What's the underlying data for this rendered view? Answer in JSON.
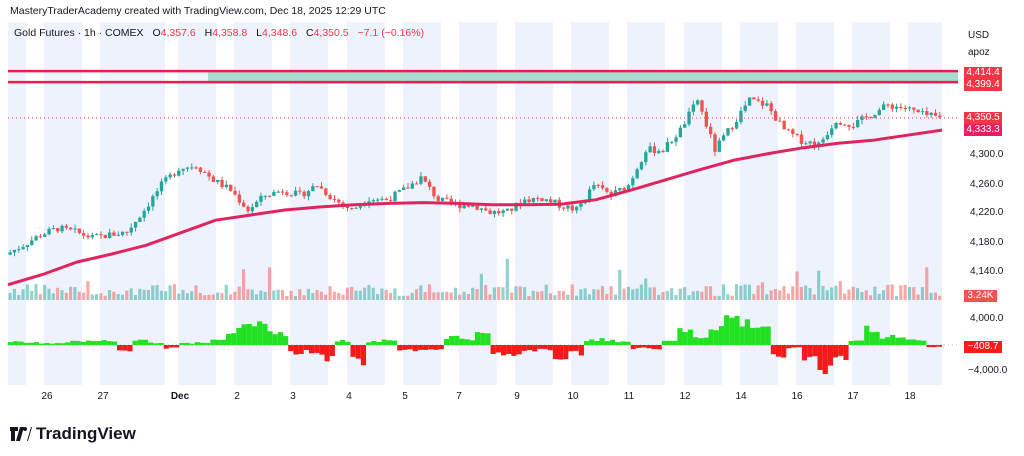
{
  "header": {
    "credit": "MasteryTraderAcademy created with TradingView.com, Dec 18, 2025 12:29 UTC",
    "symbol": "Gold Futures · 1h · COMEX",
    "open_label": "O",
    "open": "4,357.6",
    "high_label": "H",
    "high": "4,358.8",
    "low_label": "L",
    "low": "4,348.6",
    "close_label": "C",
    "close": "4,350.5",
    "change": "−7.1 (−0.16%)"
  },
  "price_scale": {
    "currency": "USD",
    "extra": "apoz",
    "ticks": [
      "4,300.0",
      "4,260.0",
      "4,220.0",
      "4,180.0",
      "4,140.0",
      "4,000.0",
      "−4,000.0"
    ],
    "tags": {
      "level_high": "4,414.4",
      "level_low": "4,399.4",
      "last_price": "4,350.5",
      "ma_value": "4,333.3",
      "volume": "3.24K",
      "oscillator": "−408.7"
    }
  },
  "time_axis": [
    "26",
    "27",
    "Dec",
    "2",
    "3",
    "4",
    "5",
    "7",
    "9",
    "10",
    "11",
    "12",
    "14",
    "16",
    "17",
    "18"
  ],
  "colors": {
    "up": "#26a69a",
    "down": "#ef5350",
    "ma": "#e0245e",
    "level_line": "#e91e4a",
    "zone_fill": "#a7dcd2",
    "session_band": "#eef2fc",
    "osc_pos": "#22e022",
    "osc_neg": "#f21b1b",
    "tag_red": "#f23645",
    "tag_ma": "#e91e63",
    "tag_volume": "#ef5350"
  },
  "brand": "TradingView",
  "chart_data": {
    "type": "candlestick",
    "symbol": "Gold Futures",
    "interval": "1h",
    "closes": [
      4164,
      4177,
      4191,
      4200,
      4195,
      4187,
      4191,
      4195,
      4225,
      4259,
      4282,
      4286,
      4266,
      4252,
      4225,
      4245,
      4252,
      4245,
      4259,
      4239,
      4225,
      4241,
      4239,
      4252,
      4269,
      4239,
      4232,
      4232,
      4222,
      4222,
      4239,
      4241,
      4232,
      4225,
      4259,
      4245,
      4259,
      4307,
      4307,
      4334,
      4375,
      4307,
      4341,
      4375,
      4368,
      4334,
      4320,
      4314,
      4348,
      4341,
      4355,
      4368,
      4364,
      4355,
      4350.5
    ],
    "moving_average": [
      4123,
      4137,
      4154,
      4165,
      4177,
      4194,
      4211,
      4218,
      4225,
      4229,
      4232,
      4234,
      4235,
      4234,
      4232,
      4232,
      4233,
      4239,
      4252,
      4266,
      4280,
      4293,
      4302,
      4310,
      4316,
      4320,
      4327,
      4334
    ],
    "oscillator": [
      600,
      500,
      300,
      400,
      800,
      1000,
      700,
      -1200,
      900,
      400,
      -600,
      300,
      500,
      1200,
      2500,
      3000,
      3500,
      2000,
      -1500,
      -1200,
      -2500,
      800,
      -3000,
      700,
      1000,
      -800,
      -1000,
      -900,
      1500,
      1200,
      2000,
      -1500,
      -1800,
      -1200,
      -1000,
      -2200,
      -1500,
      800,
      1000,
      600,
      -600,
      -800,
      900,
      2500,
      1500,
      3500,
      5000,
      4000,
      3500,
      -1800,
      -500,
      -2200,
      -5000,
      -2500,
      800,
      3000,
      1500,
      1200,
      800,
      -408.7
    ],
    "levels": [
      4414.4,
      4399.4
    ],
    "price_range": [
      4100,
      4440
    ],
    "oscillator_range": [
      -4000,
      4000
    ],
    "last_volume": "3.24K"
  }
}
